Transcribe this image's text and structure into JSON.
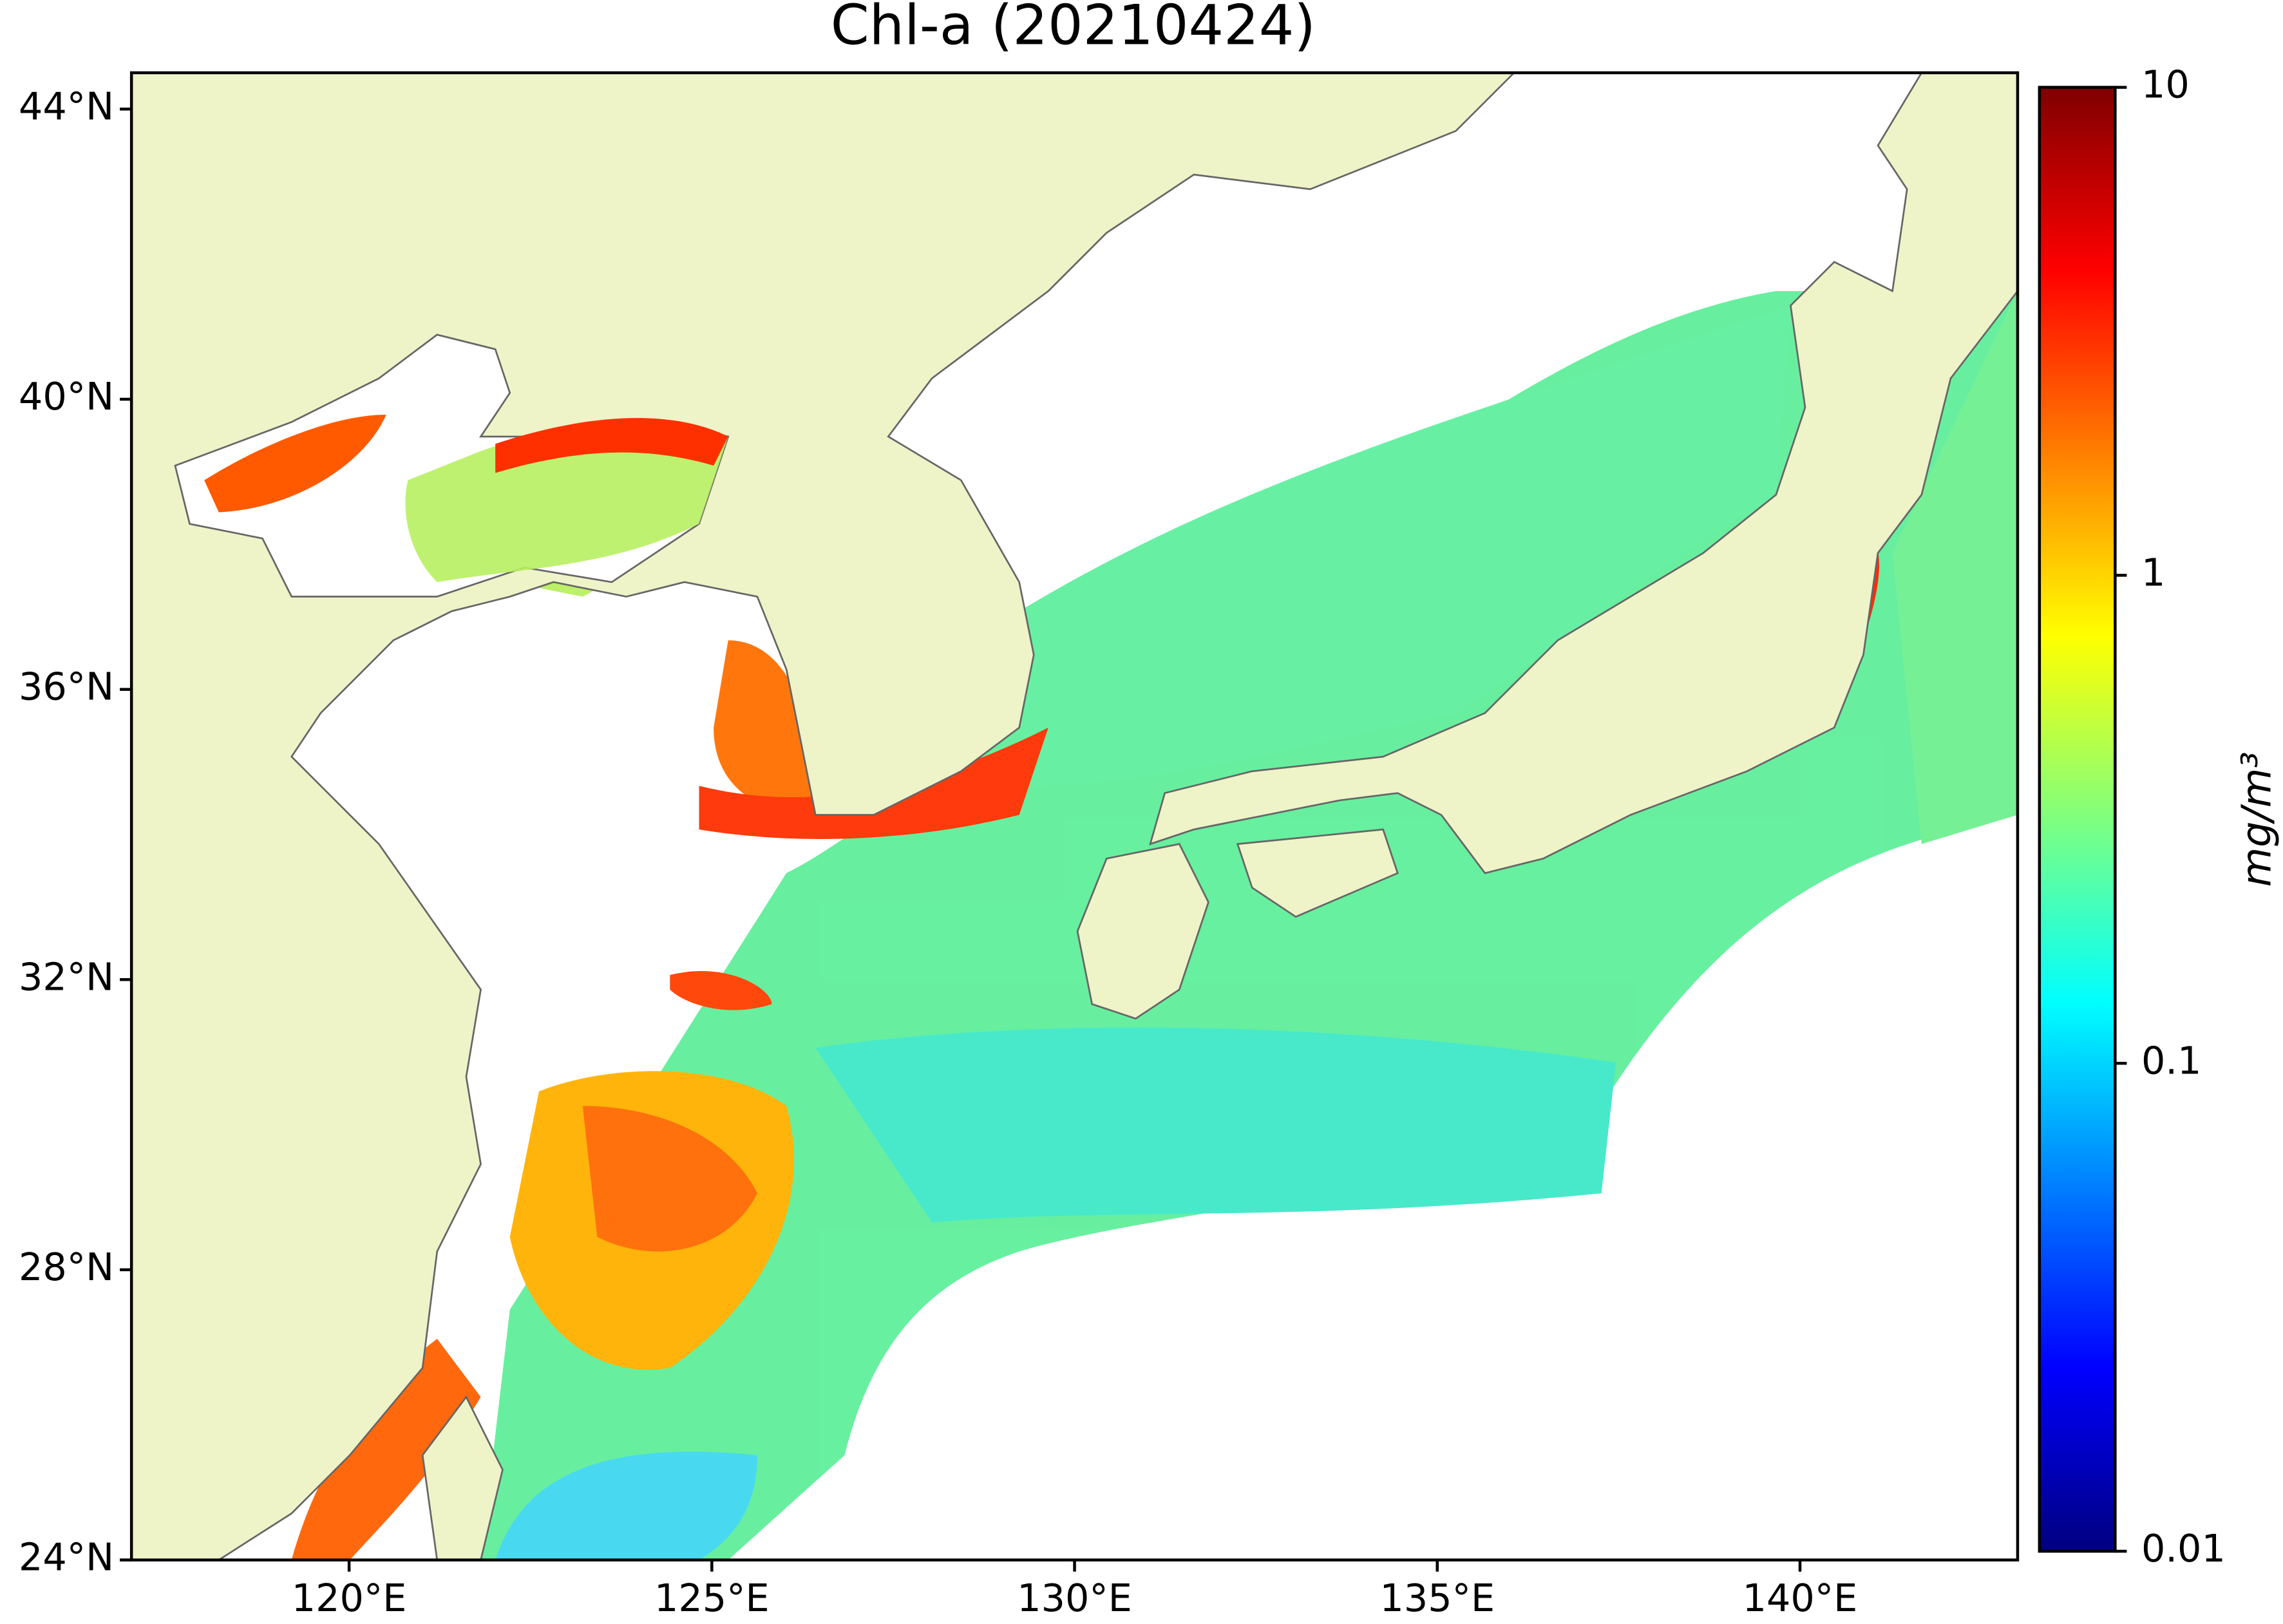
{
  "chart_data": {
    "type": "map",
    "title": "Chl-a (20210424)",
    "xlim": [
      117,
      143
    ],
    "ylim": [
      24,
      44.5
    ],
    "xticks": [
      {
        "value": 120,
        "label": "120°E"
      },
      {
        "value": 125,
        "label": "125°E"
      },
      {
        "value": 130,
        "label": "130°E"
      },
      {
        "value": 135,
        "label": "135°E"
      },
      {
        "value": 140,
        "label": "140°E"
      }
    ],
    "yticks": [
      {
        "value": 24,
        "label": "24°N"
      },
      {
        "value": 28,
        "label": "28°N"
      },
      {
        "value": 32,
        "label": "32°N"
      },
      {
        "value": 36,
        "label": "36°N"
      },
      {
        "value": 40,
        "label": "40°N"
      },
      {
        "value": 44,
        "label": "44°N"
      }
    ],
    "colorbar": {
      "label": "mg/m³",
      "scale": "log",
      "lim": [
        0.01,
        10
      ],
      "ticks": [
        0.01,
        0.1,
        1,
        10
      ],
      "colormap": [
        "#00007f",
        "#0000ff",
        "#007fff",
        "#00ffff",
        "#7fff7f",
        "#ffff00",
        "#ff7f00",
        "#ff0000",
        "#7f0000"
      ]
    },
    "land_color": "#eff3c8"
  }
}
